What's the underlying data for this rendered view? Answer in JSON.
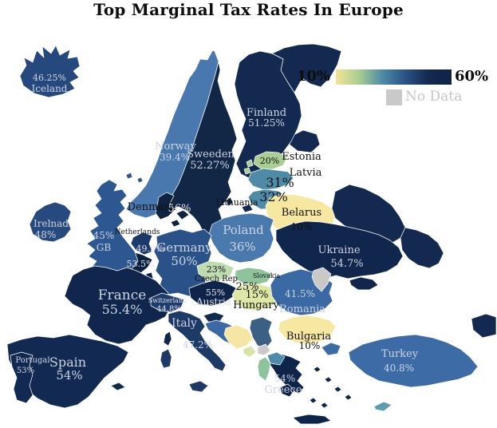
{
  "title": "Top Marginal Tax Rates In Europe",
  "legend": {
    "min_label": "10%",
    "max_label": "60%",
    "no_data_label": "No Data",
    "no_data_color": "#c9c9c9",
    "gradient": [
      "#f3e495",
      "#a9ce92",
      "#4e8ba6",
      "#2a5288",
      "#13294f",
      "#0e2245"
    ]
  },
  "countries": [
    {
      "id": "russia",
      "color": "#13294f"
    },
    {
      "id": "iceland",
      "name_label": "Iceland",
      "value_label": "46.25%",
      "color": "#25497d"
    },
    {
      "id": "norway",
      "name_label": "Norway",
      "value_label": "39.4%",
      "color": "#4878ad"
    },
    {
      "id": "sweden",
      "name_label": "Sweeden",
      "value_label": "52.27%",
      "color": "#122646"
    },
    {
      "id": "finland",
      "name_label": "Finland",
      "value_label": "51.25%",
      "color": "#13294f"
    },
    {
      "id": "estonia",
      "name_label": "Estonia",
      "value_label": "20%",
      "color": "#a9ce92"
    },
    {
      "id": "latvia",
      "name_label": "Latvia",
      "value_label": "31%",
      "color": "#4e8ba6"
    },
    {
      "id": "lithuania",
      "name_label": "Lithuania",
      "value_label": "32%",
      "color": "#4e8ba6"
    },
    {
      "id": "belarus",
      "name_label": "Belarus",
      "value_label": "10%",
      "color": "#f6e7a1"
    },
    {
      "id": "poland",
      "name_label": "Poland",
      "value_label": "36%",
      "color": "#4a79ad"
    },
    {
      "id": "denmark",
      "name_label": "Denmark",
      "value_label": "56%",
      "color": "#0e2342"
    },
    {
      "id": "netherlands",
      "name_label": "Netherlands",
      "value_label": "49.5%",
      "color": "#1b3a69"
    },
    {
      "id": "belgium",
      "value_label": "53.5%",
      "color": "#0d2040"
    },
    {
      "id": "luxembourg",
      "color": "#0d2040"
    },
    {
      "id": "germany",
      "name_label": "Germany",
      "value_label": "50%",
      "color": "#2a5288"
    },
    {
      "id": "great-britain",
      "name_label": "GB",
      "value_label": "45%",
      "color": "#2d5791"
    },
    {
      "id": "ireland",
      "name_label": "Irelnad",
      "value_label": "48%",
      "color": "#26497e"
    },
    {
      "id": "france",
      "name_label": "France",
      "value_label": "55.4%",
      "color": "#10264c"
    },
    {
      "id": "switzerland",
      "name_label": "Switzerland",
      "value_label": "44.8%",
      "color": "#1e3c6e"
    },
    {
      "id": "austria",
      "name_label": "Austria",
      "value_label": "55%",
      "color": "#0f2449"
    },
    {
      "id": "czech-republic",
      "name_label": "Czech Rep",
      "value_label": "23%",
      "color": "#bedcb0"
    },
    {
      "id": "slovakia",
      "name_label": "Slovakia",
      "value_label": "25%",
      "color": "#8ec49c"
    },
    {
      "id": "hungary",
      "name_label": "Hungary",
      "value_label": "15%",
      "color": "#dfe7a6"
    },
    {
      "id": "italy",
      "name_label": "Italy",
      "value_label": "47.2%",
      "color": "#1d3a66"
    },
    {
      "id": "spain",
      "name_label": "Spain",
      "value_label": "54%",
      "color": "#122a52"
    },
    {
      "id": "portugal",
      "name_label": "Portugal",
      "value_label": "53%",
      "color": "#122a52"
    },
    {
      "id": "ukraine",
      "name_label": "Ukraine",
      "value_label": "54.7%",
      "color": "#10264c"
    },
    {
      "id": "romania",
      "name_label": "Romania",
      "value_label": "41.5%",
      "color": "#3a69a3"
    },
    {
      "id": "moldova",
      "color": "#c9c9c9"
    },
    {
      "id": "bulgaria",
      "name_label": "Bulgaria",
      "value_label": "10%",
      "color": "#f6e7a1"
    },
    {
      "id": "greece",
      "name_label": "Greece",
      "value_label": "54%",
      "color": "#0f2449"
    },
    {
      "id": "turkey",
      "name_label": "Turkey",
      "value_label": "40.8%",
      "color": "#3c6ba5"
    },
    {
      "id": "slovenia",
      "color": "#12294f"
    },
    {
      "id": "croatia",
      "color": "#3a69a3"
    },
    {
      "id": "bosnia",
      "color": "#f5e6a3"
    },
    {
      "id": "serbia",
      "color": "#3c5f84"
    },
    {
      "id": "montenegro",
      "color": "#d9e3a4"
    },
    {
      "id": "kosovo",
      "color": "#c9c9c9"
    },
    {
      "id": "north-macedonia",
      "color": "#4e8ba6"
    },
    {
      "id": "albania",
      "color": "#8ec49c"
    },
    {
      "id": "cyprus",
      "color": "#5e9cb4"
    }
  ]
}
